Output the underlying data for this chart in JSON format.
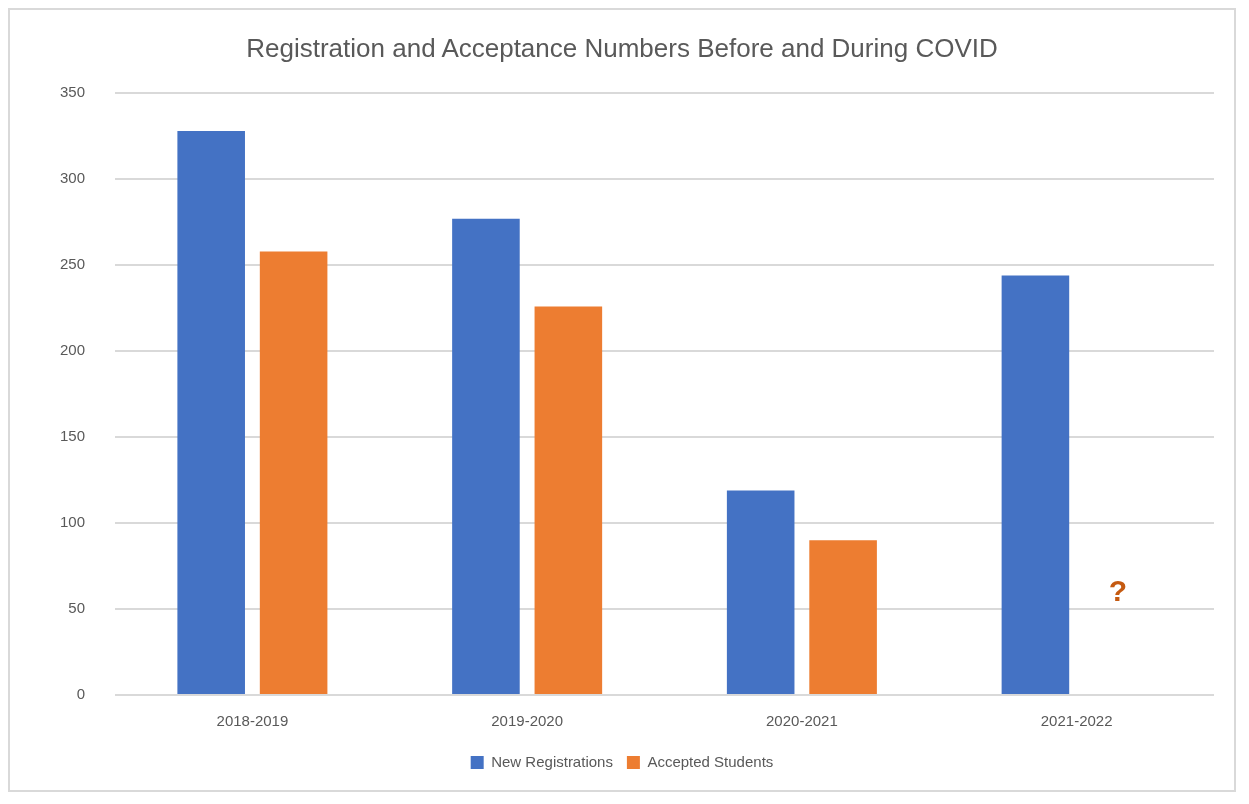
{
  "chart_data": {
    "type": "bar",
    "title": "Registration and Acceptance Numbers Before and During COVID",
    "categories": [
      "2018-2019",
      "2019-2020",
      "2020-2021",
      "2021-2022"
    ],
    "series": [
      {
        "name": "New Registrations",
        "color": "#4472c4",
        "values": [
          328,
          277,
          119,
          244
        ]
      },
      {
        "name": "Accepted Students",
        "color": "#ed7d31",
        "values": [
          258,
          226,
          90,
          null
        ]
      }
    ],
    "ylim": [
      0,
      350
    ],
    "yticks": [
      0,
      50,
      100,
      150,
      200,
      250,
      300,
      350
    ],
    "grid": "y",
    "legend": "bottom",
    "annotations": [
      "?"
    ]
  }
}
